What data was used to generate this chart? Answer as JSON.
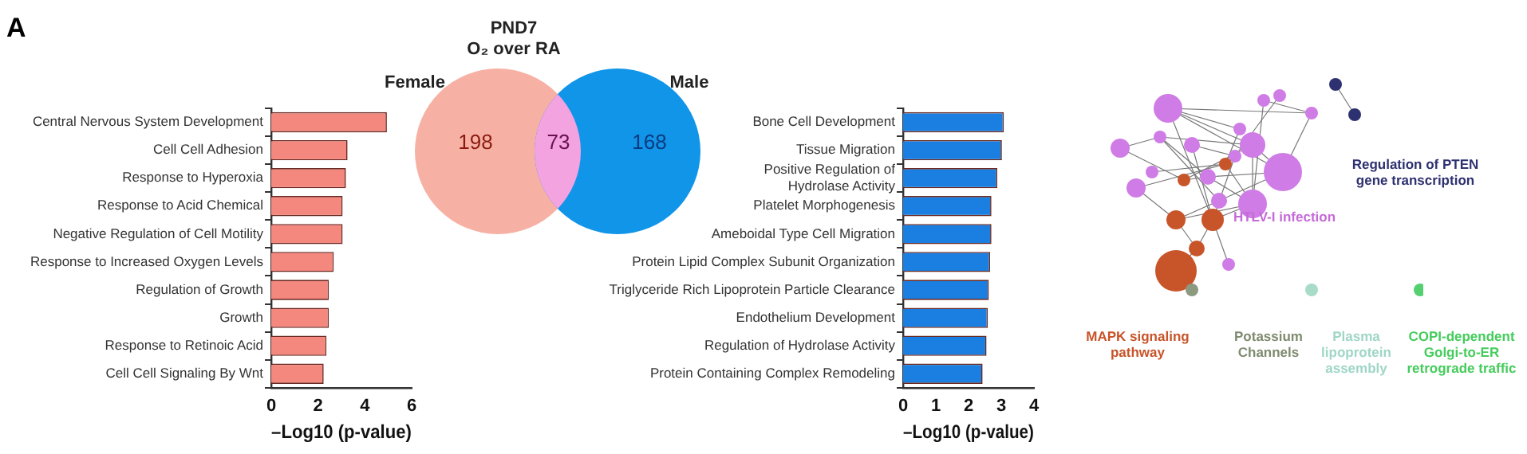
{
  "chart_data": [
    {
      "type": "bar",
      "orientation": "horizontal",
      "annotations": [
        "A"
      ],
      "categories": [
        "Central Nervous System Development",
        "Cell Cell Adhesion",
        "Response to Hyperoxia",
        "Response to Acid Chemical",
        "Negative Regulation of Cell Motility",
        "Response to Increased Oxygen Levels",
        "Regulation of Growth",
        "Growth",
        "Response to Retinoic Acid",
        "Cell Cell Signaling By Wnt"
      ],
      "values": [
        4.94,
        3.26,
        3.19,
        3.05,
        3.05,
        2.67,
        2.46,
        2.46,
        2.36,
        2.24
      ],
      "color": "#f4877e",
      "xlim": [
        0,
        6
      ],
      "xticks": [
        0,
        2,
        4,
        6
      ],
      "xlabel": "–Log10 (p-value)",
      "grid": false,
      "legend": false
    },
    {
      "type": "other",
      "title": "PND7\nO₂ over RA",
      "categories": [
        "Female",
        null,
        "Male"
      ],
      "values": [
        198,
        73,
        168
      ],
      "data_labels": true,
      "colors": [
        "#f7b1a4",
        "#f2a3e0",
        "#1195e8"
      ]
    },
    {
      "type": "bar",
      "orientation": "horizontal",
      "categories": [
        "Bone Cell Development",
        "Tissue Migration",
        "Positive Regulation of\nHydrolase Activity",
        "Platelet Morphogenesis",
        "Ameboidal Type Cell Migration",
        "Protein Lipid Complex Subunit Organization",
        "Triglyceride Rich Lipoprotein Particle Clearance",
        "Endothelium Development",
        "Regulation of Hydrolase Activity",
        "Protein Containing Complex Remodeling"
      ],
      "values": [
        3.08,
        3.02,
        2.88,
        2.7,
        2.7,
        2.66,
        2.62,
        2.59,
        2.55,
        2.43
      ],
      "color": "#1a7fe0",
      "xlim": [
        0,
        4
      ],
      "xticks": [
        0,
        1,
        2,
        3,
        4
      ],
      "xlabel": "–Log10 (p-value)",
      "grid": false,
      "legend": false
    },
    {
      "type": "other",
      "categories": [
        "Regulation of PTEN gene transcription",
        "HTLV-I infection",
        "MAPK signaling pathway",
        "Potassium Channels",
        "Plasma lipoprotein assembly",
        "COPI-dependent Golgi-to-ER retrograde traffic"
      ],
      "colors": [
        "#2e3170",
        "#c56ad8",
        "#c8552a",
        "#7f8c70",
        "#9fd6c6",
        "#45cc5c"
      ]
    }
  ]
}
